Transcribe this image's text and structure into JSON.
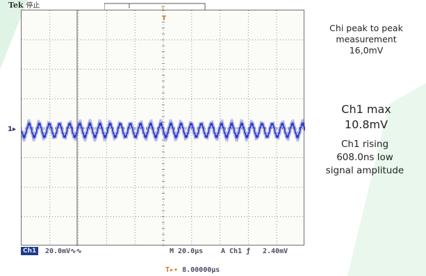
{
  "scope": {
    "brand": "Tek",
    "status": "停止",
    "channel_marker": "1",
    "trigger_marker": "T",
    "ch1_badge": "Ch1",
    "volts_per_div": "20.0mV∿∿",
    "timebase": "M 20.0µs",
    "trigger_source": "A  Ch1  ƒ",
    "trigger_level": "2.40mV",
    "position_indicator": "T▸▾",
    "position_value": "8.00000µs",
    "waveform_color": "#2a36c8",
    "grid_color": "#8a8a8a",
    "signal": {
      "cycles": 28,
      "amplitude_divisions": 0.22
    }
  },
  "annotations": {
    "peak_to_peak": [
      "Chi peak to peak",
      "measurement",
      "16,0mV"
    ],
    "max": [
      "Ch1 max",
      "10.8mV"
    ],
    "rising": [
      "Ch1 rising",
      "608.0ns low",
      "signal amplitude"
    ]
  },
  "colors": {
    "accent_green": "#2ab24a",
    "badge_blue": "#1f3b8a",
    "marker_orange": "#d07020"
  }
}
